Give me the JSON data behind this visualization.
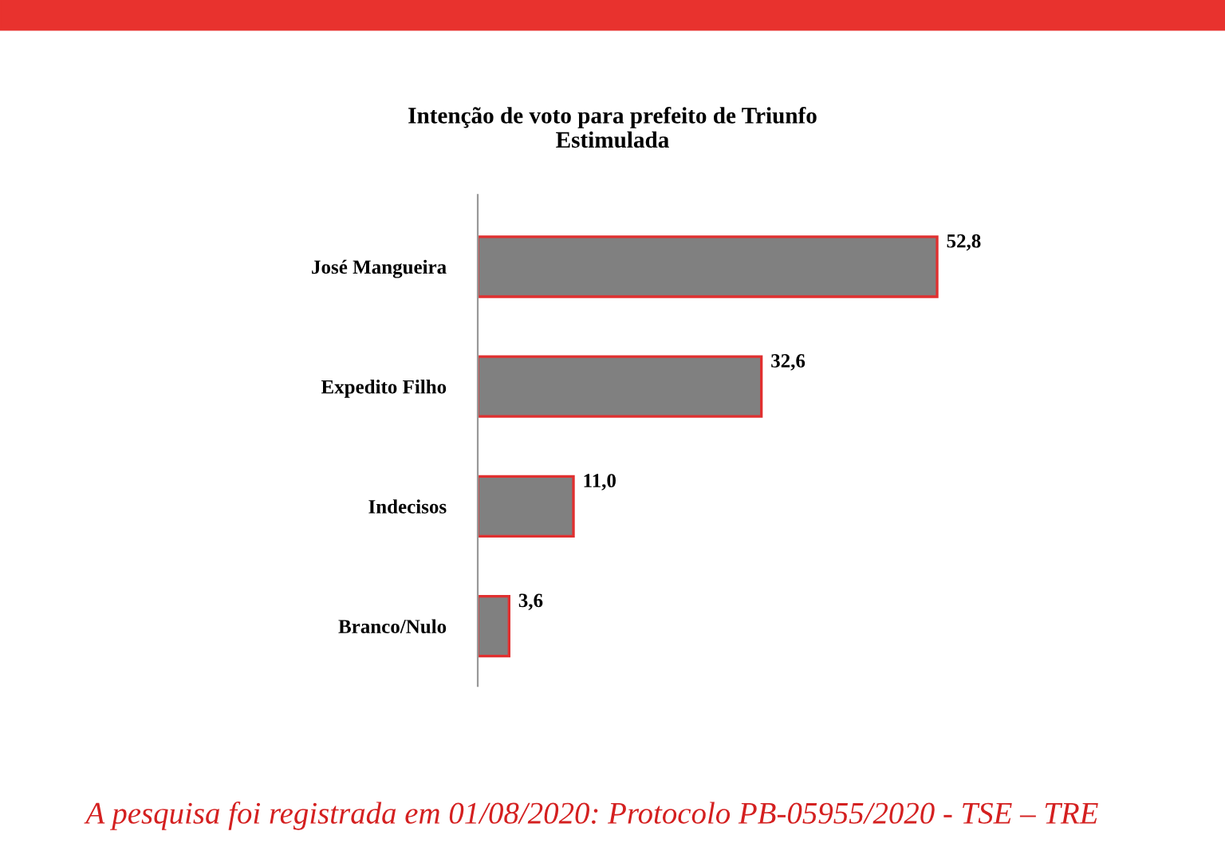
{
  "chart_data": {
    "type": "bar",
    "orientation": "horizontal",
    "title": "Intenção de voto para prefeito de Triunfo\nEstimulada",
    "categories": [
      "José Mangueira",
      "Expedito Filho",
      "Indecisos",
      "Branco/Nulo"
    ],
    "values": [
      52.8,
      32.6,
      11.0,
      3.6
    ],
    "value_labels": [
      "52,8",
      "32,6",
      "11,0",
      "3,6"
    ],
    "color": "#808080",
    "annotations": [
      "A pesquisa foi registrada em 01/08/2020: Protocolo PB-05955/2020 - TSE – TRE"
    ],
    "grid": false,
    "legend": false
  }
}
